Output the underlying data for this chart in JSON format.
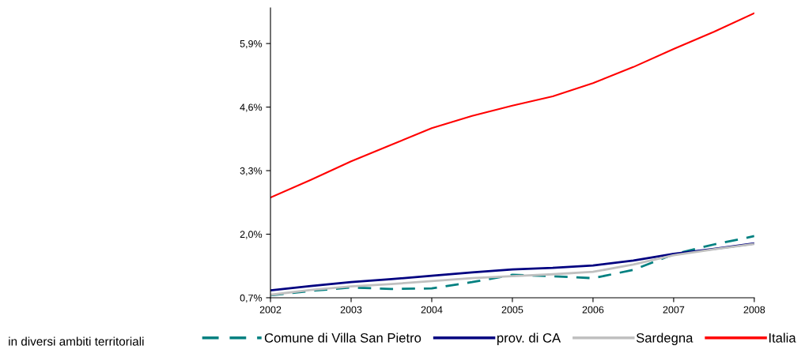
{
  "chart_data": {
    "type": "line",
    "annotations": [
      "in diversi ambiti territoriali"
    ],
    "xlim": [
      2002,
      2008
    ],
    "xticks": [
      2002,
      2003,
      2004,
      2005,
      2006,
      2007,
      2008
    ],
    "ylim": [
      0.7,
      6.63
    ],
    "yticks": [
      {
        "value": 0.7,
        "label": "0,7%"
      },
      {
        "value": 2.0,
        "label": "2,0%"
      },
      {
        "value": 3.3,
        "label": "3,3%"
      },
      {
        "value": 4.6,
        "label": "4,6%"
      },
      {
        "value": 5.9,
        "label": "5,9%"
      }
    ],
    "grid": false,
    "legend": "bottom",
    "marker": "none",
    "series": [
      {
        "name": "Comune di Villa San Pietro",
        "color": "#008080",
        "line_style": "dashed",
        "x": [
          2002,
          2002.5,
          2003,
          2003.5,
          2004,
          2004.5,
          2005,
          2005.5,
          2006,
          2006.5,
          2007,
          2007.5,
          2008
        ],
        "values": [
          0.75,
          0.84,
          0.91,
          0.88,
          0.89,
          1.02,
          1.17,
          1.14,
          1.1,
          1.27,
          1.59,
          1.79,
          1.96
        ]
      },
      {
        "name": "prov. di CA",
        "color": "#000080",
        "line_style": "solid",
        "x": [
          2002,
          2002.5,
          2003,
          2003.5,
          2004,
          2004.5,
          2005,
          2005.5,
          2006,
          2006.5,
          2007,
          2007.5,
          2008
        ],
        "values": [
          0.85,
          0.94,
          1.02,
          1.08,
          1.15,
          1.22,
          1.28,
          1.31,
          1.36,
          1.46,
          1.6,
          1.7,
          1.81
        ]
      },
      {
        "name": "Sardegna",
        "color": "#c0c0c0",
        "line_style": "solid",
        "x": [
          2002,
          2002.5,
          2003,
          2003.5,
          2004,
          2004.5,
          2005,
          2005.5,
          2006,
          2006.5,
          2007,
          2007.5,
          2008
        ],
        "values": [
          0.76,
          0.86,
          0.93,
          0.98,
          1.04,
          1.1,
          1.14,
          1.18,
          1.23,
          1.38,
          1.57,
          1.69,
          1.8
        ]
      },
      {
        "name": "Italia",
        "color": "#ff0000",
        "line_style": "solid",
        "x": [
          2002,
          2002.5,
          2003,
          2003.5,
          2004,
          2004.5,
          2005,
          2005.5,
          2006,
          2006.5,
          2007,
          2007.5,
          2008
        ],
        "values": [
          2.75,
          3.11,
          3.49,
          3.83,
          4.17,
          4.42,
          4.63,
          4.82,
          5.09,
          5.42,
          5.79,
          6.14,
          6.52
        ]
      }
    ]
  }
}
